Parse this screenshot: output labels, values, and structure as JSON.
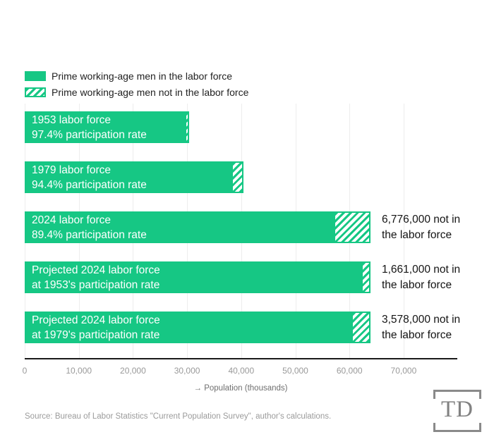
{
  "legend": {
    "items": [
      {
        "label": "Prime working-age men in the labor force",
        "swatch": "solid-green"
      },
      {
        "label": "Prime working-age men not in the labor force",
        "swatch": "green-hatched"
      }
    ]
  },
  "bars": [
    {
      "line1": "1953 labor force",
      "line2": "97.4% participation rate",
      "ann1": "",
      "ann2": ""
    },
    {
      "line1": "1979 labor force",
      "line2": "94.4% participation rate",
      "ann1": "",
      "ann2": ""
    },
    {
      "line1": "2024 labor force",
      "line2": "89.4% participation rate",
      "ann1": "6,776,000 not in",
      "ann2": "the labor force"
    },
    {
      "line1": "Projected 2024 labor force",
      "line2": "at 1953's participation rate",
      "ann1": "1,661,000 not in",
      "ann2": "the labor force"
    },
    {
      "line1": "Projected 2024 labor force",
      "line2": "at 1979's participation rate",
      "ann1": "3,578,000 not in",
      "ann2": "the labor force"
    }
  ],
  "axis": {
    "ticks": [
      "0",
      "10,000",
      "20,000",
      "30,000",
      "40,000",
      "50,000",
      "60,000",
      "70,000"
    ],
    "label": "→ Population (thousands)"
  },
  "source_text": "Source: Bureau of Labor Statistics \"Current Population Survey\", author's calculations.",
  "logo_text": "TD",
  "colors": {
    "green": "#16c784",
    "axis_line": "#1a1a1a",
    "tick_text": "#999999",
    "grid": "#ededed",
    "annotation_text": "#141414",
    "bar_label_text": "#ffffff",
    "source_text": "#9b9b9b",
    "logo_gray": "#8a8a8a"
  },
  "chart_data": {
    "type": "bar",
    "orientation": "horizontal",
    "stacked": true,
    "unit": "thousands of men",
    "categories": [
      "1953 labor force (97.4% participation rate)",
      "1979 labor force (94.4% participation rate)",
      "2024 labor force (89.4% participation rate)",
      "Projected 2024 labor force at 1953's participation rate",
      "Projected 2024 labor force at 1979's participation rate"
    ],
    "series": [
      {
        "name": "Prime working-age men in the labor force",
        "values": [
          29600,
          38160,
          57149,
          62264,
          60347
        ]
      },
      {
        "name": "Prime working-age men not in the labor force",
        "values": [
          790,
          2260,
          6776,
          1661,
          3578
        ]
      }
    ],
    "annotations": [
      null,
      null,
      "6,776,000 not in the labor force",
      "1,661,000 not in the labor force",
      "3,578,000 not in the labor force"
    ],
    "xlabel": "→ Population (thousands)",
    "xticks": [
      0,
      10000,
      20000,
      30000,
      40000,
      50000,
      60000,
      70000
    ],
    "xlim": [
      0,
      80000
    ],
    "grid": true,
    "legend_position": "top-left"
  }
}
